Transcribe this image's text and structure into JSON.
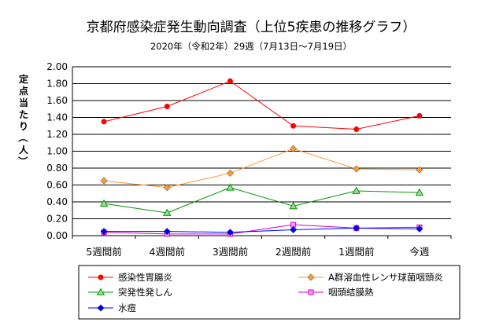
{
  "chart_data": {
    "type": "line",
    "title": "京都府感染症発生動向調査（上位5疾患の推移グラフ）",
    "subtitle": "2020年（令和2年）29週（7月13日～7月19日）",
    "ylabel": "定点当たり（人）",
    "ylim": [
      0,
      2.0
    ],
    "yticks": [
      "0.00",
      "0.20",
      "0.40",
      "0.60",
      "0.80",
      "1.00",
      "1.20",
      "1.40",
      "1.60",
      "1.80",
      "2.00"
    ],
    "categories": [
      "5週間前",
      "4週間前",
      "3週間前",
      "2週間前",
      "1週間前",
      "今週"
    ],
    "grid": true,
    "legend_position": "bottom",
    "series": [
      {
        "name": "感染性胃腸炎",
        "color": "#ff0000",
        "marker": "circle",
        "values": [
          1.35,
          1.53,
          1.83,
          1.3,
          1.26,
          1.42
        ]
      },
      {
        "name": "A群溶血性レンサ球菌咽頭炎",
        "color": "#ff9933",
        "marker": "diamond",
        "values": [
          0.65,
          0.57,
          0.74,
          1.03,
          0.79,
          0.78
        ]
      },
      {
        "name": "突発性発しん",
        "color": "#009900",
        "marker": "triangle",
        "values": [
          0.38,
          0.27,
          0.57,
          0.35,
          0.53,
          0.51
        ]
      },
      {
        "name": "咽頭結膜熱",
        "color": "#cc00cc",
        "marker": "square",
        "values": [
          0.04,
          0.02,
          0.02,
          0.13,
          0.09,
          0.1
        ]
      },
      {
        "name": "水痘",
        "color": "#0000ff",
        "marker": "diamond",
        "values": [
          0.05,
          0.05,
          0.04,
          0.07,
          0.09,
          0.08
        ]
      }
    ]
  }
}
